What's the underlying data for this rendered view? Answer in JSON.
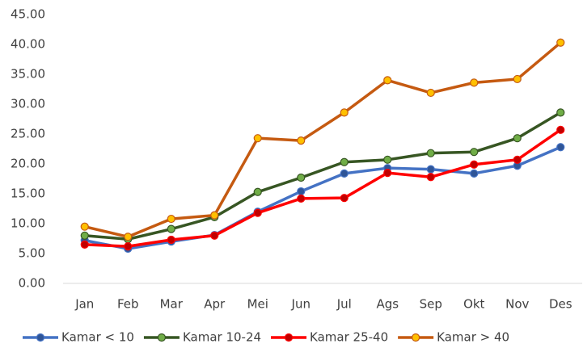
{
  "chart_data": {
    "type": "line",
    "categories": [
      "Jan",
      "Feb",
      "Mar",
      "Apr",
      "Mei",
      "Jun",
      "Jul",
      "Ags",
      "Sep",
      "Okt",
      "Nov",
      "Des"
    ],
    "series": [
      {
        "name": "Kamar < 10",
        "color": "#4472c4",
        "marker_color": "#2f5597",
        "values": [
          7.2,
          5.8,
          7.0,
          8.1,
          12.0,
          15.4,
          18.4,
          19.3,
          19.1,
          18.4,
          19.7,
          22.8
        ]
      },
      {
        "name": "Kamar 10-24",
        "color": "#375623",
        "marker_color": "#70ad47",
        "values": [
          8.0,
          7.4,
          9.1,
          11.1,
          15.3,
          17.7,
          20.3,
          20.7,
          21.8,
          22.0,
          24.3,
          28.6
        ]
      },
      {
        "name": "Kamar 25-40",
        "color": "#ff0000",
        "marker_color": "#c00000",
        "values": [
          6.5,
          6.2,
          7.3,
          8.0,
          11.8,
          14.2,
          14.3,
          18.5,
          17.8,
          19.9,
          20.7,
          25.7
        ]
      },
      {
        "name": "Kamar > 40",
        "color": "#c55a11",
        "marker_color": "#ffc000",
        "values": [
          9.5,
          7.8,
          10.8,
          11.4,
          24.3,
          23.9,
          28.6,
          34.0,
          31.9,
          33.6,
          34.2,
          40.3
        ]
      }
    ],
    "ylim": [
      0,
      45
    ],
    "yticks": [
      {
        "value": 0,
        "label": "0.00"
      },
      {
        "value": 5,
        "label": "5.00"
      },
      {
        "value": 10,
        "label": "10.00"
      },
      {
        "value": 15,
        "label": "15.00"
      },
      {
        "value": 20,
        "label": "20.00"
      },
      {
        "value": 25,
        "label": "25.00"
      },
      {
        "value": 30,
        "label": "30.00"
      },
      {
        "value": 35,
        "label": "35.00"
      },
      {
        "value": 40,
        "label": "40.00"
      },
      {
        "value": 45,
        "label": "45.00"
      }
    ],
    "grid": false,
    "legend": "bottom"
  }
}
